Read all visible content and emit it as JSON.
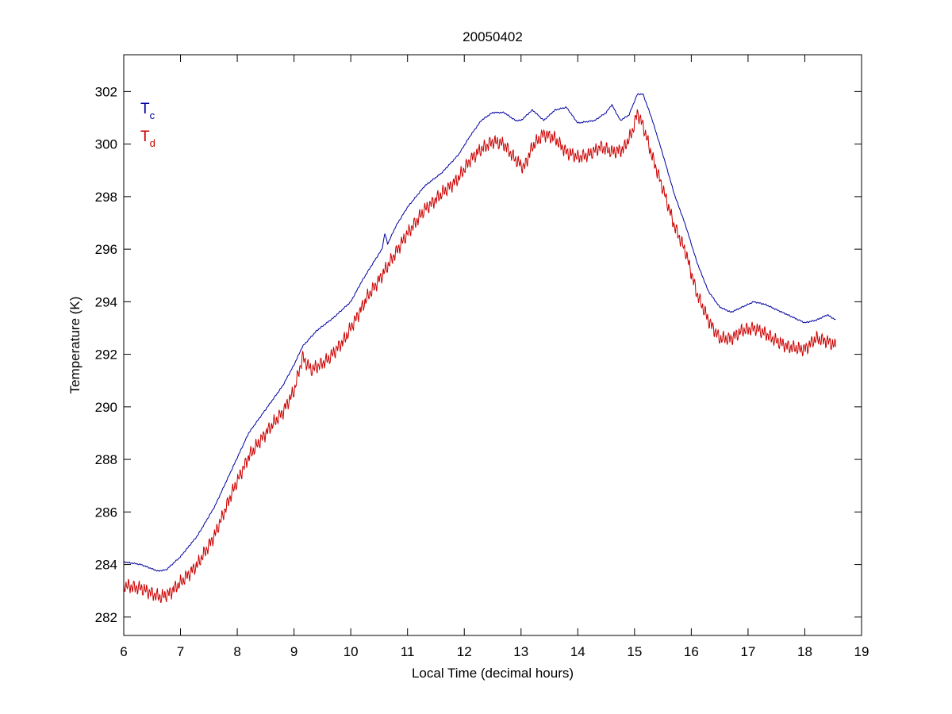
{
  "chart_data": {
    "type": "line",
    "title": "20050402",
    "xlabel": "Local Time (decimal hours)",
    "ylabel": "Temperature (K)",
    "xlim": [
      6,
      19
    ],
    "ylim": [
      281.3,
      303.4
    ],
    "xticks": [
      6,
      7,
      8,
      9,
      10,
      11,
      12,
      13,
      14,
      15,
      16,
      17,
      18,
      19
    ],
    "yticks": [
      282,
      284,
      286,
      288,
      290,
      292,
      294,
      296,
      298,
      300,
      302
    ],
    "grid": false,
    "legend_position": "top-left",
    "series": [
      {
        "name": "Tc",
        "label_main": "T",
        "label_sub": "c",
        "color": "#0000a0",
        "noise": 0.03,
        "points": [
          [
            6.0,
            284.1
          ],
          [
            6.3,
            284.0
          ],
          [
            6.6,
            283.75
          ],
          [
            6.75,
            283.8
          ],
          [
            7.0,
            284.3
          ],
          [
            7.3,
            285.1
          ],
          [
            7.6,
            286.2
          ],
          [
            7.9,
            287.6
          ],
          [
            8.2,
            289.0
          ],
          [
            8.5,
            289.9
          ],
          [
            8.8,
            290.8
          ],
          [
            9.0,
            291.6
          ],
          [
            9.15,
            292.3
          ],
          [
            9.4,
            292.9
          ],
          [
            9.7,
            293.4
          ],
          [
            10.0,
            294.0
          ],
          [
            10.2,
            294.8
          ],
          [
            10.4,
            295.5
          ],
          [
            10.55,
            296.0
          ],
          [
            10.6,
            296.6
          ],
          [
            10.65,
            296.2
          ],
          [
            10.8,
            296.9
          ],
          [
            11.0,
            297.6
          ],
          [
            11.3,
            298.4
          ],
          [
            11.6,
            298.9
          ],
          [
            11.9,
            299.6
          ],
          [
            12.1,
            300.3
          ],
          [
            12.3,
            300.9
          ],
          [
            12.5,
            301.2
          ],
          [
            12.7,
            301.2
          ],
          [
            12.9,
            300.9
          ],
          [
            13.0,
            300.9
          ],
          [
            13.2,
            301.3
          ],
          [
            13.4,
            300.9
          ],
          [
            13.6,
            301.3
          ],
          [
            13.8,
            301.4
          ],
          [
            14.0,
            300.8
          ],
          [
            14.3,
            300.9
          ],
          [
            14.5,
            301.2
          ],
          [
            14.6,
            301.5
          ],
          [
            14.75,
            300.9
          ],
          [
            14.9,
            301.1
          ],
          [
            15.05,
            301.9
          ],
          [
            15.15,
            301.9
          ],
          [
            15.3,
            301.0
          ],
          [
            15.5,
            299.6
          ],
          [
            15.7,
            298.1
          ],
          [
            15.9,
            296.9
          ],
          [
            16.1,
            295.5
          ],
          [
            16.3,
            294.4
          ],
          [
            16.5,
            293.8
          ],
          [
            16.7,
            293.6
          ],
          [
            16.9,
            293.8
          ],
          [
            17.1,
            294.0
          ],
          [
            17.3,
            293.9
          ],
          [
            17.5,
            293.7
          ],
          [
            17.7,
            293.5
          ],
          [
            17.9,
            293.3
          ],
          [
            18.0,
            293.2
          ],
          [
            18.2,
            293.3
          ],
          [
            18.4,
            293.5
          ],
          [
            18.55,
            293.3
          ]
        ]
      },
      {
        "name": "Td",
        "label_main": "T",
        "label_sub": "d",
        "color": "#cc0000",
        "noise": 0.32,
        "points": [
          [
            6.0,
            283.2
          ],
          [
            6.3,
            283.1
          ],
          [
            6.5,
            282.9
          ],
          [
            6.65,
            282.75
          ],
          [
            6.8,
            282.9
          ],
          [
            7.0,
            283.3
          ],
          [
            7.3,
            284.0
          ],
          [
            7.6,
            285.1
          ],
          [
            7.9,
            286.7
          ],
          [
            8.2,
            288.1
          ],
          [
            8.5,
            289.0
          ],
          [
            8.8,
            289.8
          ],
          [
            9.0,
            290.6
          ],
          [
            9.15,
            291.9
          ],
          [
            9.3,
            291.4
          ],
          [
            9.6,
            291.8
          ],
          [
            9.9,
            292.6
          ],
          [
            10.1,
            293.4
          ],
          [
            10.3,
            294.2
          ],
          [
            10.55,
            295.0
          ],
          [
            10.8,
            295.9
          ],
          [
            11.0,
            296.6
          ],
          [
            11.3,
            297.5
          ],
          [
            11.6,
            298.1
          ],
          [
            11.9,
            298.7
          ],
          [
            12.1,
            299.4
          ],
          [
            12.3,
            299.8
          ],
          [
            12.5,
            300.1
          ],
          [
            12.7,
            300.0
          ],
          [
            12.9,
            299.4
          ],
          [
            13.05,
            299.1
          ],
          [
            13.2,
            299.9
          ],
          [
            13.4,
            300.4
          ],
          [
            13.6,
            300.2
          ],
          [
            13.8,
            299.7
          ],
          [
            14.0,
            299.5
          ],
          [
            14.2,
            299.6
          ],
          [
            14.4,
            299.9
          ],
          [
            14.6,
            299.7
          ],
          [
            14.8,
            299.8
          ],
          [
            14.95,
            300.4
          ],
          [
            15.05,
            301.2
          ],
          [
            15.15,
            300.7
          ],
          [
            15.3,
            299.6
          ],
          [
            15.5,
            298.3
          ],
          [
            15.7,
            296.9
          ],
          [
            15.9,
            295.9
          ],
          [
            16.1,
            294.3
          ],
          [
            16.3,
            293.3
          ],
          [
            16.5,
            292.6
          ],
          [
            16.7,
            292.6
          ],
          [
            16.9,
            292.9
          ],
          [
            17.1,
            293.0
          ],
          [
            17.3,
            292.8
          ],
          [
            17.5,
            292.5
          ],
          [
            17.7,
            292.3
          ],
          [
            17.9,
            292.2
          ],
          [
            18.0,
            292.2
          ],
          [
            18.2,
            292.6
          ],
          [
            18.4,
            292.5
          ],
          [
            18.55,
            292.3
          ]
        ]
      }
    ]
  }
}
